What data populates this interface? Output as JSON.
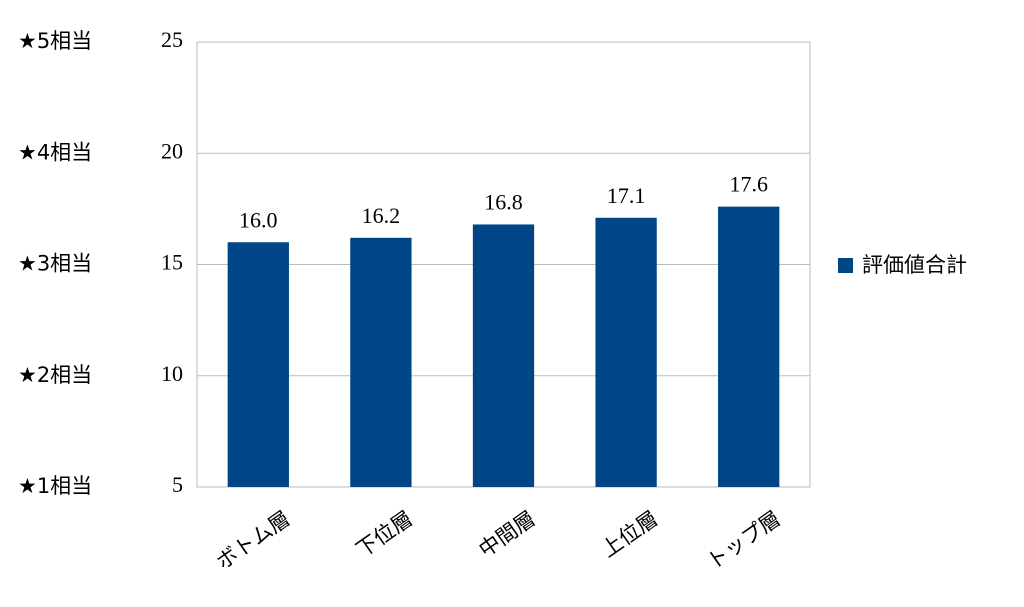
{
  "chart_data": {
    "type": "bar",
    "categories": [
      "ボトム層",
      "下位層",
      "中間層",
      "上位層",
      "トップ層"
    ],
    "series": [
      {
        "name": "評価値合計",
        "color": "#004586",
        "values": [
          16.0,
          16.2,
          16.8,
          17.1,
          17.6
        ],
        "value_labels": [
          "16.0",
          "16.2",
          "16.8",
          "17.1",
          "17.6"
        ]
      }
    ],
    "ylim": [
      5,
      25
    ],
    "yticks": [
      5,
      10,
      15,
      20,
      25
    ],
    "grid": true,
    "star_labels": [
      {
        "value": 25,
        "label": "★5相当"
      },
      {
        "value": 20,
        "label": "★4相当"
      },
      {
        "value": 15,
        "label": "★3相当"
      },
      {
        "value": 10,
        "label": "★2相当"
      },
      {
        "value": 5,
        "label": "★1相当"
      }
    ],
    "legend": "right"
  }
}
